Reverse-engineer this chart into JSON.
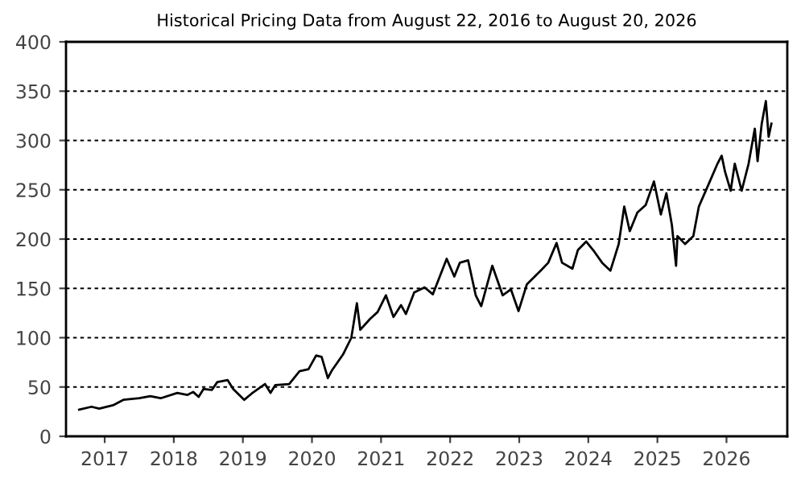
{
  "chart_data": {
    "type": "line",
    "title": "Historical Pricing Data from August 22, 2016 to August 20, 2026",
    "x": [
      2016.63,
      2016.81,
      2016.92,
      2017.12,
      2017.27,
      2017.5,
      2017.66,
      2017.81,
      2018.05,
      2018.2,
      2018.28,
      2018.36,
      2018.43,
      2018.55,
      2018.63,
      2018.78,
      2018.86,
      2019.02,
      2019.13,
      2019.32,
      2019.4,
      2019.47,
      2019.67,
      2019.82,
      2019.95,
      2020.06,
      2020.14,
      2020.23,
      2020.29,
      2020.45,
      2020.57,
      2020.65,
      2020.7,
      2020.84,
      2020.95,
      2021.07,
      2021.18,
      2021.29,
      2021.36,
      2021.48,
      2021.63,
      2021.75,
      2021.95,
      2022.06,
      2022.14,
      2022.26,
      2022.37,
      2022.45,
      2022.61,
      2022.76,
      2022.88,
      2022.99,
      2023.11,
      2023.31,
      2023.42,
      2023.54,
      2023.62,
      2023.77,
      2023.85,
      2023.97,
      2024.09,
      2024.2,
      2024.32,
      2024.44,
      2024.52,
      2024.6,
      2024.71,
      2024.83,
      2024.95,
      2025.05,
      2025.13,
      2025.21,
      2025.27,
      2025.29,
      2025.4,
      2025.52,
      2025.6,
      2025.75,
      2025.87,
      2025.93,
      2025.98,
      2026.06,
      2026.12,
      2026.22,
      2026.32,
      2026.41,
      2026.45,
      2026.51,
      2026.57,
      2026.61,
      2026.65
    ],
    "series": [
      {
        "color": "#000000",
        "values": [
          27,
          30,
          28,
          31.5,
          37,
          38.6,
          40.8,
          38.6,
          44,
          42,
          45,
          40,
          48,
          47,
          55,
          57,
          48,
          37,
          43.5,
          53,
          44,
          52,
          53,
          66,
          68,
          82,
          80.5,
          59,
          67,
          83,
          100,
          135,
          108,
          119,
          126,
          143,
          121,
          133,
          124,
          146,
          151,
          144,
          180,
          162,
          176,
          178.5,
          143,
          132,
          173,
          143,
          149,
          127,
          154,
          168,
          176,
          196,
          176,
          170,
          189,
          197.5,
          187,
          176,
          168,
          195,
          233,
          208,
          227,
          234.5,
          258.5,
          225,
          246.5,
          214,
          173,
          203,
          195,
          203,
          233,
          257,
          276.5,
          284.6,
          268,
          249,
          276.5,
          249,
          276.5,
          312,
          279,
          317,
          340,
          303.7,
          317
        ]
      }
    ],
    "xlim": [
      2016.44,
      2026.88
    ],
    "xticks": [
      2017,
      2018,
      2019,
      2020,
      2021,
      2022,
      2023,
      2024,
      2025,
      2026
    ],
    "ylim": [
      0,
      400
    ],
    "yticks": [
      0,
      50,
      100,
      150,
      200,
      250,
      300,
      350,
      400
    ],
    "grid": "y",
    "line_style": "solid"
  }
}
